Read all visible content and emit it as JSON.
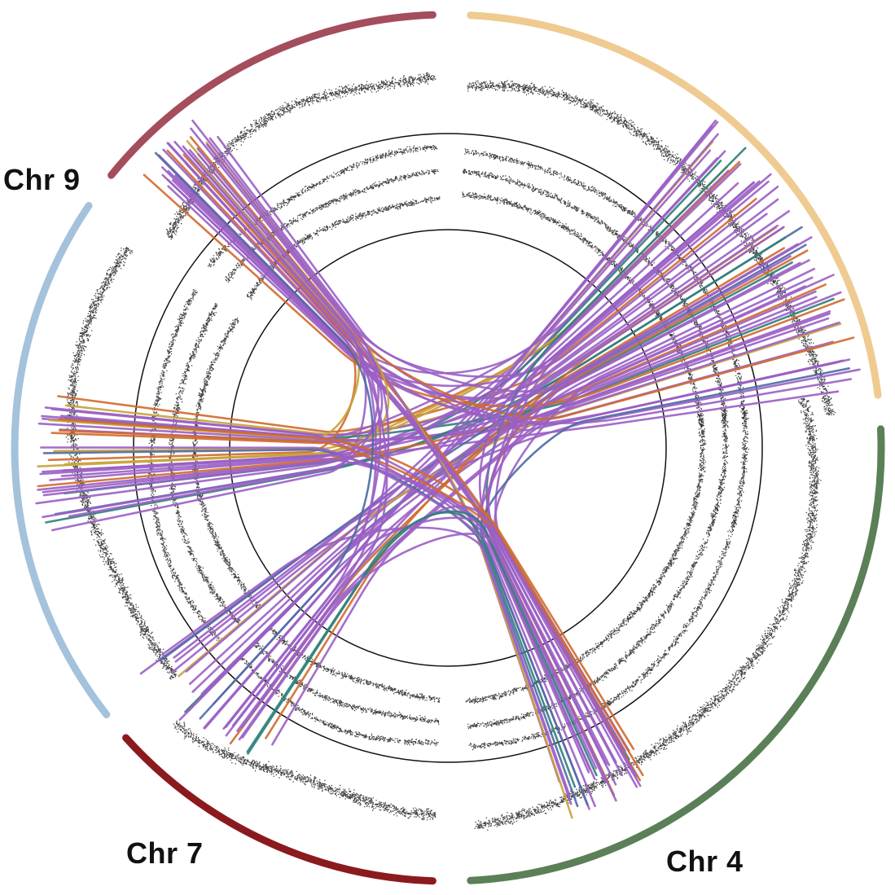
{
  "labels": {
    "chr9": "Chr 9",
    "chr7": "Chr 7",
    "chr4": "Chr 4"
  },
  "colors": {
    "ideogram_top_left": "#a44d5c",
    "ideogram_top_right": "#efcb91",
    "ideogram_left": "#a4c2db",
    "ideogram_bottom_left": "#8b1a1f",
    "ideogram_right": "#5b7f57",
    "link_main": "#9a5fc4",
    "link_orange": "#d06a2c",
    "link_gold": "#c8a23a",
    "link_teal": "#2f7f7a",
    "link_blue": "#4f6aa3",
    "ring": "#111111",
    "points": "#222222"
  }
}
